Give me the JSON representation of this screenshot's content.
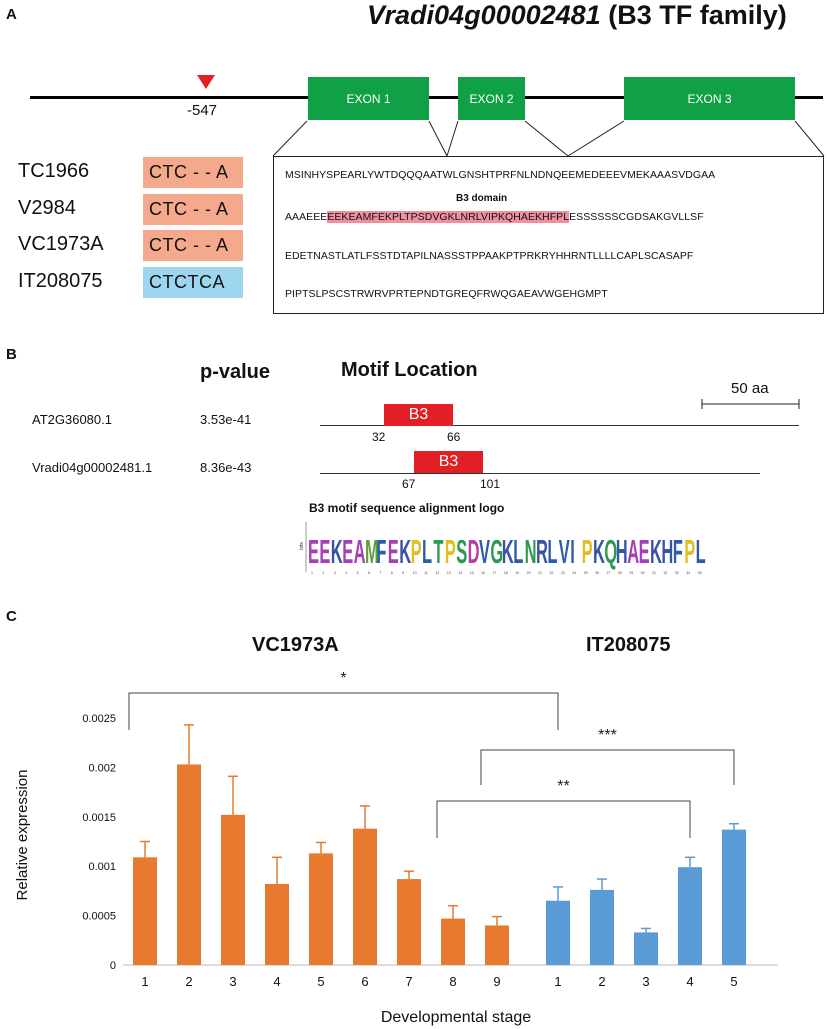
{
  "panelA": {
    "letter": "A",
    "gene_title_italic": "Vradi04g00002481",
    "gene_title_rest": " (B3 TF family)",
    "marker_label": "-547",
    "exons": [
      "EXON 1",
      "EXON 2",
      "EXON 3"
    ],
    "cultivars": [
      {
        "name": "TC1966",
        "haplotype": "CTC - - A",
        "color": "#f4a98c"
      },
      {
        "name": "V2984",
        "haplotype": "CTC - - A",
        "color": "#f4a98c"
      },
      {
        "name": "VC1973A",
        "haplotype": "CTC - - A",
        "color": "#f4a98c"
      },
      {
        "name": "IT208075",
        "haplotype": "CTCTCA",
        "color": "#9fd6ef"
      }
    ],
    "domain_label": "B3 domain",
    "sequence": {
      "line1": "MSINHYSPEARLYWTDQQQAATWLGNSHTPRFNLNDNQEEMEDEEEVMEKAAASVDGAA",
      "line2_pre": "AAAEEE",
      "line2_domain": "EEKEAMFEKPLTPSDVGKLNRLVIPKQHAEKHFPL",
      "line2_post": "ESSSSSSCGDSAKGVLLSF",
      "line3": "EDETNASTLATLFSSTDTAPILNASSSTPPAAKPTPRKRYHHRNTLLLLCAPLSCASAPF",
      "line4": "PIPTSLPSCSTRWRVPRTEPNDTGREQFRWQGAEAVWGEHGMPT"
    }
  },
  "panelB": {
    "letter": "B",
    "col_pvalue": "p-value",
    "col_location": "Motif Location",
    "scale_label": "50 aa",
    "rows": [
      {
        "name": "AT2G36080.1",
        "pvalue": "3.53e-41",
        "motif": "B3",
        "start": "32",
        "end": "66"
      },
      {
        "name": "Vradi04g00002481.1",
        "pvalue": "8.36e-43",
        "motif": "B3",
        "start": "67",
        "end": "101"
      }
    ],
    "logo_title": "B3 motif sequence alignment logo",
    "logo_axis": "bits"
  },
  "panelC": {
    "letter": "C"
  },
  "chart_data": {
    "type": "bar",
    "title": "",
    "ylabel": "Relative expression",
    "xlabel": "Developmental stage",
    "ylim": [
      0,
      0.0025
    ],
    "yticks": [
      "0",
      "0.0005",
      "0.001",
      "0.0015",
      "0.002",
      "0.0025"
    ],
    "series": [
      {
        "name": "VC1973A",
        "color": "#e77a2e",
        "categories": [
          "1",
          "2",
          "3",
          "4",
          "5",
          "6",
          "7",
          "8",
          "9"
        ],
        "values": [
          0.00109,
          0.00203,
          0.00152,
          0.00082,
          0.00113,
          0.00138,
          0.00087,
          0.00047,
          0.0004
        ],
        "errors": [
          0.00016,
          0.0004,
          0.00039,
          0.00027,
          0.00011,
          0.00023,
          8e-05,
          0.00013,
          9e-05
        ]
      },
      {
        "name": "IT208075",
        "color": "#5b9bd5",
        "categories": [
          "1",
          "2",
          "3",
          "4",
          "5"
        ],
        "values": [
          0.00065,
          0.00076,
          0.00033,
          0.00099,
          0.00137
        ],
        "errors": [
          0.00014,
          0.00011,
          4e-05,
          0.0001,
          6e-05
        ]
      }
    ],
    "significance": [
      {
        "label": "*",
        "from": "VC1973A 1",
        "to": "IT208075 1"
      },
      {
        "label": "***",
        "from": "VC1973A 9",
        "to": "IT208075 5"
      },
      {
        "label": "**",
        "from": "VC1973A 8",
        "to": "IT208075 4"
      }
    ]
  }
}
